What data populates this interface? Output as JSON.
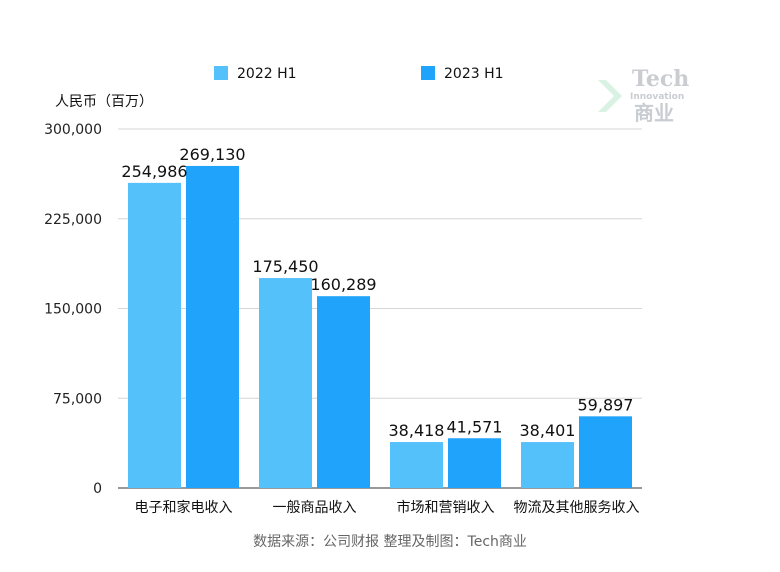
{
  "chart_data": {
    "type": "bar",
    "categories": [
      "电子和家电收入",
      "一般商品收入",
      "市场和营销收入",
      "物流及其他服务收入"
    ],
    "series": [
      {
        "name": "2022 H1",
        "values": [
          254986,
          175450,
          38418,
          38401
        ],
        "labels": [
          "254,986",
          "175,450",
          "38,418",
          "38,401"
        ]
      },
      {
        "name": "2023 H1",
        "values": [
          269130,
          160289,
          41571,
          59897
        ],
        "labels": [
          "269,130",
          "160,289",
          "41,571",
          "59,897"
        ]
      }
    ],
    "ylabel": "人民币（百万）",
    "ylim": [
      0,
      300000
    ],
    "yticks": [
      0,
      75000,
      150000,
      225000,
      300000
    ],
    "ytick_labels": [
      "0",
      "75,000",
      "150,000",
      "225,000",
      "300,000"
    ],
    "grid": true,
    "legend": "top-center",
    "colors": [
      "#55c1fb",
      "#1fa3fb"
    ]
  },
  "source_note": "数据来源：公司财报 整理及制图：Tech商业",
  "watermark": {
    "line1": "Tech",
    "line2": "Innovation",
    "line3": "商业"
  }
}
